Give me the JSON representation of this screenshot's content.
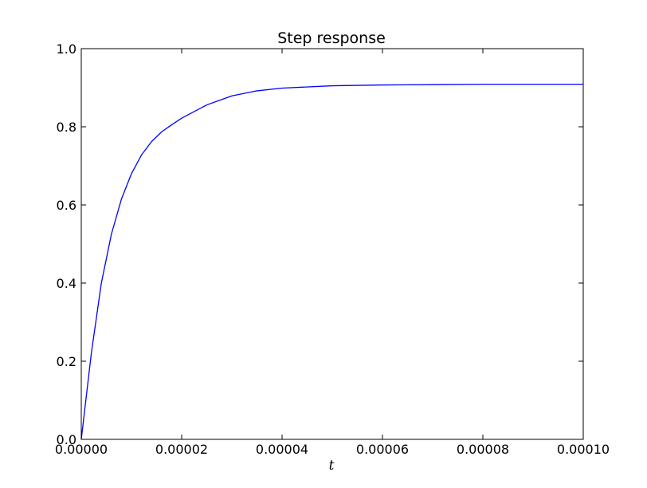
{
  "chart_data": {
    "type": "line",
    "title": "Step response",
    "xlabel": "t",
    "ylabel": "",
    "xlim": [
      0.0,
      0.0001
    ],
    "ylim": [
      0.0,
      1.0
    ],
    "grid": false,
    "x_ticks": [
      0.0,
      2e-05,
      4e-05,
      6e-05,
      8e-05,
      0.0001
    ],
    "x_tick_labels": [
      "0.00000",
      "0.00002",
      "0.00004",
      "0.00006",
      "0.00008",
      "0.00010"
    ],
    "y_ticks": [
      0.0,
      0.2,
      0.4,
      0.6,
      0.8,
      1.0
    ],
    "y_tick_labels": [
      "0.0",
      "0.2",
      "0.4",
      "0.6",
      "0.8",
      "1.0"
    ],
    "series": [
      {
        "color": "#0000ff",
        "x": [
          0.0,
          2e-06,
          4e-06,
          6e-06,
          8e-06,
          1e-05,
          1.2e-05,
          1.4e-05,
          1.6e-05,
          1.8e-05,
          2e-05,
          2.5e-05,
          3e-05,
          3.5e-05,
          4e-05,
          5e-05,
          6e-05,
          7e-05,
          8e-05,
          9e-05,
          0.0001
        ],
        "y": [
          0.0,
          0.22,
          0.4,
          0.525,
          0.615,
          0.68,
          0.728,
          0.762,
          0.787,
          0.805,
          0.822,
          0.856,
          0.879,
          0.892,
          0.899,
          0.905,
          0.907,
          0.908,
          0.909,
          0.909,
          0.909
        ]
      }
    ]
  }
}
